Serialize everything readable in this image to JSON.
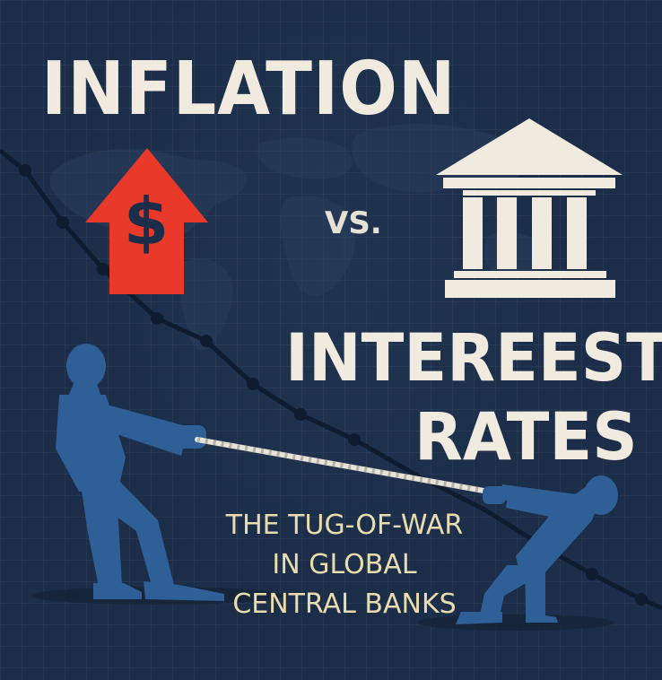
{
  "poster": {
    "title_line1": "INFLATION",
    "connector": "VS.",
    "title_line2": "INTEREEST",
    "title_line3": "RATES",
    "subtitle_lines": [
      "THE TUG-OF-WAR",
      "IN GLOBAL",
      "CENTRAL BANKS"
    ],
    "icons": {
      "inflation": "dollar-up-arrow-icon",
      "interest": "bank-building-icon"
    },
    "dollar_symbol": "$"
  },
  "colors": {
    "background": "#1b2d48",
    "headline": "#f1ebdf",
    "subtitle": "#e9dcae",
    "arrow": "#e8392b",
    "figures": "#2f5f97",
    "rope": "#e8e4da"
  }
}
